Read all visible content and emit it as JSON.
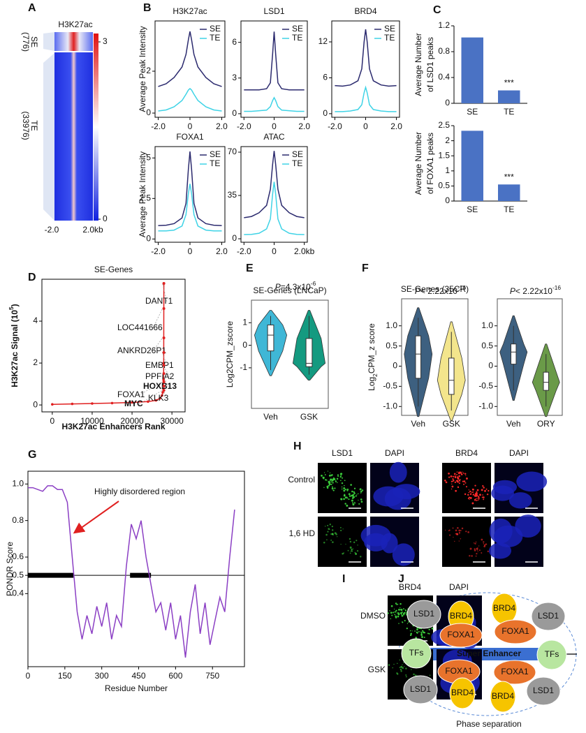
{
  "panel_letters": [
    "A",
    "B",
    "C",
    "D",
    "E",
    "F",
    "G",
    "H",
    "I",
    "J"
  ],
  "panel_a": {
    "title": "H3K27ac",
    "se_label": "SE",
    "se_count": "(776)",
    "te_label": "TE",
    "te_count": "(33976)",
    "colorbar_max": 3,
    "colorbar_min": 0,
    "x_left": "-2.0",
    "x_right": "2.0kb"
  },
  "chart_data": [
    {
      "type": "line",
      "title": "H3K27ac",
      "ylabel": "Average Peak Intensity",
      "x": [
        -2,
        -1.5,
        -1,
        -0.5,
        -0.25,
        -0.1,
        0,
        0.1,
        0.25,
        0.5,
        1,
        1.5,
        2
      ],
      "xlim": [
        -2.2,
        2.2
      ],
      "xticks": [
        {
          "value": -2,
          "label": "-2.0"
        },
        0,
        {
          "value": 2,
          "label": "2.0"
        }
      ],
      "ylim": [
        -0.2,
        4.4
      ],
      "yticks": [
        0,
        2
      ],
      "series": [
        {
          "name": "SE",
          "color": "#2b2a6e",
          "values": [
            1.27,
            1.4,
            1.7,
            2.2,
            2.8,
            3.5,
            3.9,
            3.5,
            2.8,
            2.2,
            1.7,
            1.4,
            1.27
          ]
        },
        {
          "name": "TE",
          "color": "#3fd3e6",
          "values": [
            0.1,
            0.15,
            0.3,
            0.6,
            0.9,
            1.1,
            1.17,
            1.1,
            0.9,
            0.6,
            0.3,
            0.15,
            0.1
          ]
        }
      ]
    },
    {
      "type": "line",
      "title": "LSD1",
      "x": [
        -2,
        -1.5,
        -1,
        -0.5,
        -0.25,
        -0.1,
        0,
        0.1,
        0.25,
        0.5,
        1,
        1.5,
        2
      ],
      "xlim": [
        -2.2,
        2.2
      ],
      "xticks": [
        {
          "value": -2,
          "label": "-2.0"
        },
        0,
        {
          "value": 2,
          "label": "2.0"
        }
      ],
      "ylim": [
        -0.3,
        7.8
      ],
      "yticks": [
        0,
        3,
        6
      ],
      "series": [
        {
          "name": "SE",
          "color": "#2b2a6e",
          "values": [
            2.0,
            2.0,
            2.0,
            2.1,
            2.6,
            5,
            6.9,
            5,
            2.6,
            2.1,
            2.0,
            2.0,
            2.0
          ]
        },
        {
          "name": "TE",
          "color": "#3fd3e6",
          "values": [
            0.2,
            0.2,
            0.25,
            0.3,
            0.6,
            1.1,
            1.35,
            1.1,
            0.6,
            0.3,
            0.25,
            0.2,
            0.2
          ]
        }
      ]
    },
    {
      "type": "line",
      "title": "BRD4",
      "x": [
        -2,
        -1.5,
        -1,
        -0.5,
        -0.25,
        -0.1,
        0,
        0.1,
        0.25,
        0.5,
        1,
        1.5,
        2
      ],
      "xlim": [
        -2.2,
        2.2
      ],
      "xticks": [
        {
          "value": -2,
          "label": "-2.0"
        },
        0,
        {
          "value": 2,
          "label": "2.0"
        }
      ],
      "ylim": [
        -0.6,
        15.5
      ],
      "yticks": [
        0,
        6,
        12
      ],
      "series": [
        {
          "name": "SE",
          "color": "#2b2a6e",
          "values": [
            4.7,
            4.6,
            4.8,
            5.5,
            7.5,
            12,
            14.1,
            12,
            7.5,
            5.5,
            4.8,
            4.6,
            4.7
          ]
        },
        {
          "name": "TE",
          "color": "#3fd3e6",
          "values": [
            0.35,
            0.35,
            0.45,
            0.7,
            1.5,
            3.5,
            4.4,
            3.5,
            1.5,
            0.7,
            0.45,
            0.35,
            0.35
          ]
        }
      ]
    },
    {
      "type": "line",
      "title": "FOXA1",
      "ylabel": "Average Peak Intensity",
      "x": [
        -2,
        -1.5,
        -1,
        -0.5,
        -0.25,
        -0.1,
        0,
        0.1,
        0.25,
        0.5,
        1,
        1.5,
        2
      ],
      "xlim": [
        -2.2,
        2.2
      ],
      "xticks": [
        {
          "value": -2,
          "label": "-2.0"
        },
        0,
        {
          "value": 2,
          "label": "2.0"
        }
      ],
      "ylim": [
        -0.2,
        5.7
      ],
      "yticks": [
        0,
        2.5,
        5
      ],
      "series": [
        {
          "name": "SE",
          "color": "#2b2a6e",
          "values": [
            0.83,
            0.85,
            0.95,
            1.3,
            2.2,
            4.3,
            5.4,
            4.3,
            2.2,
            1.3,
            0.95,
            0.85,
            0.83
          ]
        },
        {
          "name": "TE",
          "color": "#3fd3e6",
          "values": [
            0.5,
            0.5,
            0.55,
            0.8,
            1.5,
            2.8,
            3.4,
            2.8,
            1.5,
            0.8,
            0.55,
            0.5,
            0.5
          ]
        }
      ]
    },
    {
      "type": "line",
      "title": "ATAC",
      "x": [
        -2,
        -1.5,
        -1,
        -0.5,
        -0.25,
        -0.1,
        0,
        0.1,
        0.25,
        0.5,
        1,
        1.5,
        2
      ],
      "xlim": [
        -2.2,
        2.2
      ],
      "xticks": [
        {
          "value": -2,
          "label": "-2.0"
        },
        0,
        {
          "value": 2,
          "label": "2.0kb"
        }
      ],
      "ylim": [
        -2.8,
        74.5
      ],
      "yticks": [
        0,
        35,
        70
      ],
      "series": [
        {
          "name": "SE",
          "color": "#2b2a6e",
          "values": [
            17,
            18,
            21,
            27,
            40,
            60,
            71,
            60,
            40,
            27,
            21,
            18,
            17
          ]
        },
        {
          "name": "TE",
          "color": "#3fd3e6",
          "values": [
            3.4,
            3.6,
            4.5,
            8,
            16,
            36,
            46,
            36,
            16,
            8,
            4.5,
            3.6,
            3.4
          ]
        }
      ]
    },
    {
      "type": "bar",
      "ylabel": [
        "Average Number",
        "of LSD1 peaks"
      ],
      "categories": [
        "SE",
        "TE"
      ],
      "values": [
        1.02,
        0.2
      ],
      "significance": [
        null,
        "***"
      ],
      "color": "#4a72c4",
      "ylim": [
        0,
        1.2
      ],
      "yticks": [
        0,
        0.4,
        0.8,
        1.2
      ]
    },
    {
      "type": "bar",
      "ylabel": [
        "Average Number",
        "of FOXA1 peaks"
      ],
      "categories": [
        "SE",
        "TE"
      ],
      "values": [
        2.33,
        0.55
      ],
      "significance": [
        null,
        "***"
      ],
      "color": "#4a72c4",
      "ylim": [
        0,
        2.5
      ],
      "yticks": [
        0,
        0.5,
        1,
        1.5,
        2,
        2.5
      ]
    },
    {
      "type": "line",
      "title": "SE-Genes",
      "xlabel": "H3K27ac Enhancers Rank",
      "ylabel": {
        "text": "H3K27ac Signal (10",
        "sup": "5",
        "post": ")"
      },
      "x": [
        0,
        5000,
        10000,
        15000,
        20000,
        24000,
        26000,
        27000,
        27500,
        27700,
        27800,
        27900,
        27950,
        27976
      ],
      "xlim": [
        -2600,
        33300
      ],
      "xticks": [
        0,
        10000,
        20000,
        30000
      ],
      "ylim": [
        -0.33,
        6
      ],
      "yticks": [
        0,
        2,
        4
      ],
      "markers": true,
      "series": [
        {
          "color": "#e02020",
          "values": [
            0.03,
            0.05,
            0.07,
            0.09,
            0.12,
            0.16,
            0.22,
            0.32,
            0.45,
            0.6,
            0.8,
            1.2,
            2.0,
            5.8
          ]
        }
      ],
      "point_labels": [
        {
          "label": "DANT1",
          "y": 5.8,
          "bold": false
        },
        {
          "label": "LOC441666",
          "y": 4.6,
          "bold": false
        },
        {
          "label": "ANKRD26P1",
          "y": 3.2,
          "bold": false
        },
        {
          "label": "EMBP1",
          "y": 2.5,
          "bold": false
        },
        {
          "label": "PPFIA2",
          "y": 1.9,
          "bold": false
        },
        {
          "label": "HOXB13",
          "y": 1.5,
          "bold": true
        },
        {
          "label": "FOXA1",
          "y": 1.1,
          "bold": false
        },
        {
          "label": "KLK3",
          "y": 0.9,
          "bold": false
        },
        {
          "label": "MYC",
          "y": 0.7,
          "bold": true
        }
      ]
    },
    {
      "type": "violin",
      "title": "SE-Genes (LNCaP)",
      "ylabel": "Log2CPM_zscore",
      "annotation": {
        "italic": "P",
        "text": "=4.3x10",
        "sup": "-6"
      },
      "categories": [
        "Veh",
        "GSK"
      ],
      "colors": [
        "#3fb7d6",
        "#149a80"
      ],
      "boxes": [
        {
          "whislo": -1.1,
          "q1": -0.25,
          "med": 0.45,
          "q3": 0.9,
          "whishi": 1.3
        },
        {
          "whislo": -1.3,
          "q1": -0.95,
          "med": -0.8,
          "q3": 0.3,
          "whishi": 1.3
        }
      ],
      "ylim": [
        -2.8,
        2.0
      ],
      "yticks": [
        -1,
        0,
        1
      ]
    },
    {
      "type": "violin",
      "title": "SE-Genes (35CR)",
      "ylabel": {
        "text": "Log",
        "sub": "2",
        "post": "CPM_z score"
      },
      "annotation": {
        "italic": "P",
        "text": "< 2.22x10",
        "sup": "-16"
      },
      "categories": [
        "Veh",
        "GSK"
      ],
      "colors": [
        "#3d6080",
        "#f3e58c"
      ],
      "boxes": [
        {
          "whislo": -1.0,
          "q1": -0.3,
          "med": 0.3,
          "q3": 0.75,
          "whishi": 1.2
        },
        {
          "whislo": -1.1,
          "q1": -0.7,
          "med": -0.35,
          "q3": 0.2,
          "whishi": 0.85
        }
      ],
      "ylim": [
        -1.22,
        1.67
      ],
      "yticks": [
        {
          "value": -1,
          "label": "-1.0"
        },
        -0.5,
        0,
        0.5,
        {
          "value": 1,
          "label": "1.0"
        }
      ]
    },
    {
      "type": "violin",
      "annotation": {
        "italic": "P",
        "text": "< 2.22x10",
        "sup": "-16"
      },
      "categories": [
        "Veh",
        "ORY"
      ],
      "colors": [
        "#3d6080",
        "#6a9a48"
      ],
      "boxes": [
        {
          "whislo": -0.6,
          "q1": 0.05,
          "med": 0.35,
          "q3": 0.55,
          "whishi": 1.0
        },
        {
          "whislo": -1.0,
          "q1": -0.6,
          "med": -0.4,
          "q3": -0.15,
          "whishi": 0.3
        }
      ],
      "ylim": [
        -1.22,
        1.67
      ],
      "yticks": [
        {
          "value": -1,
          "label": "-1.0"
        },
        -0.5,
        0,
        0.5,
        {
          "value": 1,
          "label": "1.0"
        }
      ]
    },
    {
      "type": "line",
      "ylabel": "PONDR Score",
      "xlabel": "Residue Number",
      "annotation": "Highly disordered region",
      "x": [
        0,
        20,
        40,
        60,
        80,
        100,
        120,
        140,
        160,
        180,
        200,
        220,
        240,
        260,
        280,
        300,
        320,
        340,
        360,
        380,
        400,
        420,
        440,
        460,
        480,
        500,
        520,
        540,
        560,
        580,
        600,
        620,
        640,
        660,
        680,
        700,
        720,
        740,
        760,
        780,
        800,
        820,
        840
      ],
      "xlim": [
        0,
        880
      ],
      "xticks": [
        0,
        150,
        300,
        450,
        600,
        750
      ],
      "ylim": [
        0,
        1.07
      ],
      "yticks": [
        0.4,
        0.5,
        0.6,
        0.8,
        {
          "value": 1,
          "label": "1.0"
        }
      ],
      "threshold": 0.5,
      "regions": [
        [
          0,
          185
        ],
        [
          415,
          500
        ]
      ],
      "series": [
        {
          "color": "#8b3fc4",
          "values": [
            0.98,
            0.98,
            0.97,
            0.96,
            0.99,
            0.99,
            0.97,
            0.97,
            0.9,
            0.6,
            0.3,
            0.15,
            0.28,
            0.18,
            0.33,
            0.22,
            0.35,
            0.15,
            0.28,
            0.22,
            0.55,
            0.78,
            0.7,
            0.8,
            0.6,
            0.45,
            0.3,
            0.35,
            0.2,
            0.35,
            0.15,
            0.28,
            0.05,
            0.3,
            0.45,
            0.18,
            0.35,
            0.12,
            0.25,
            0.38,
            0.3,
            0.6,
            0.86
          ]
        }
      ]
    }
  ],
  "panel_h": {
    "columns": [
      "LSD1",
      "DAPI",
      "BRD4",
      "DAPI"
    ],
    "rows": [
      "Control",
      "1,6 HD"
    ]
  },
  "panel_i": {
    "columns": [
      "BRD4",
      "DAPI"
    ],
    "rows": [
      "DMSO",
      "GSK"
    ]
  },
  "panel_j": {
    "nodes": [
      "LSD1",
      "BRD4",
      "BRD4",
      "LSD1",
      "FOXA1",
      "FOXA1",
      "TFs",
      "TFs",
      "FOXA1",
      "FOXA1",
      "LSD1",
      "BRD4",
      "BRD4",
      "LSD1"
    ],
    "center": "Super Enhancer",
    "caption": "Phase separation"
  }
}
